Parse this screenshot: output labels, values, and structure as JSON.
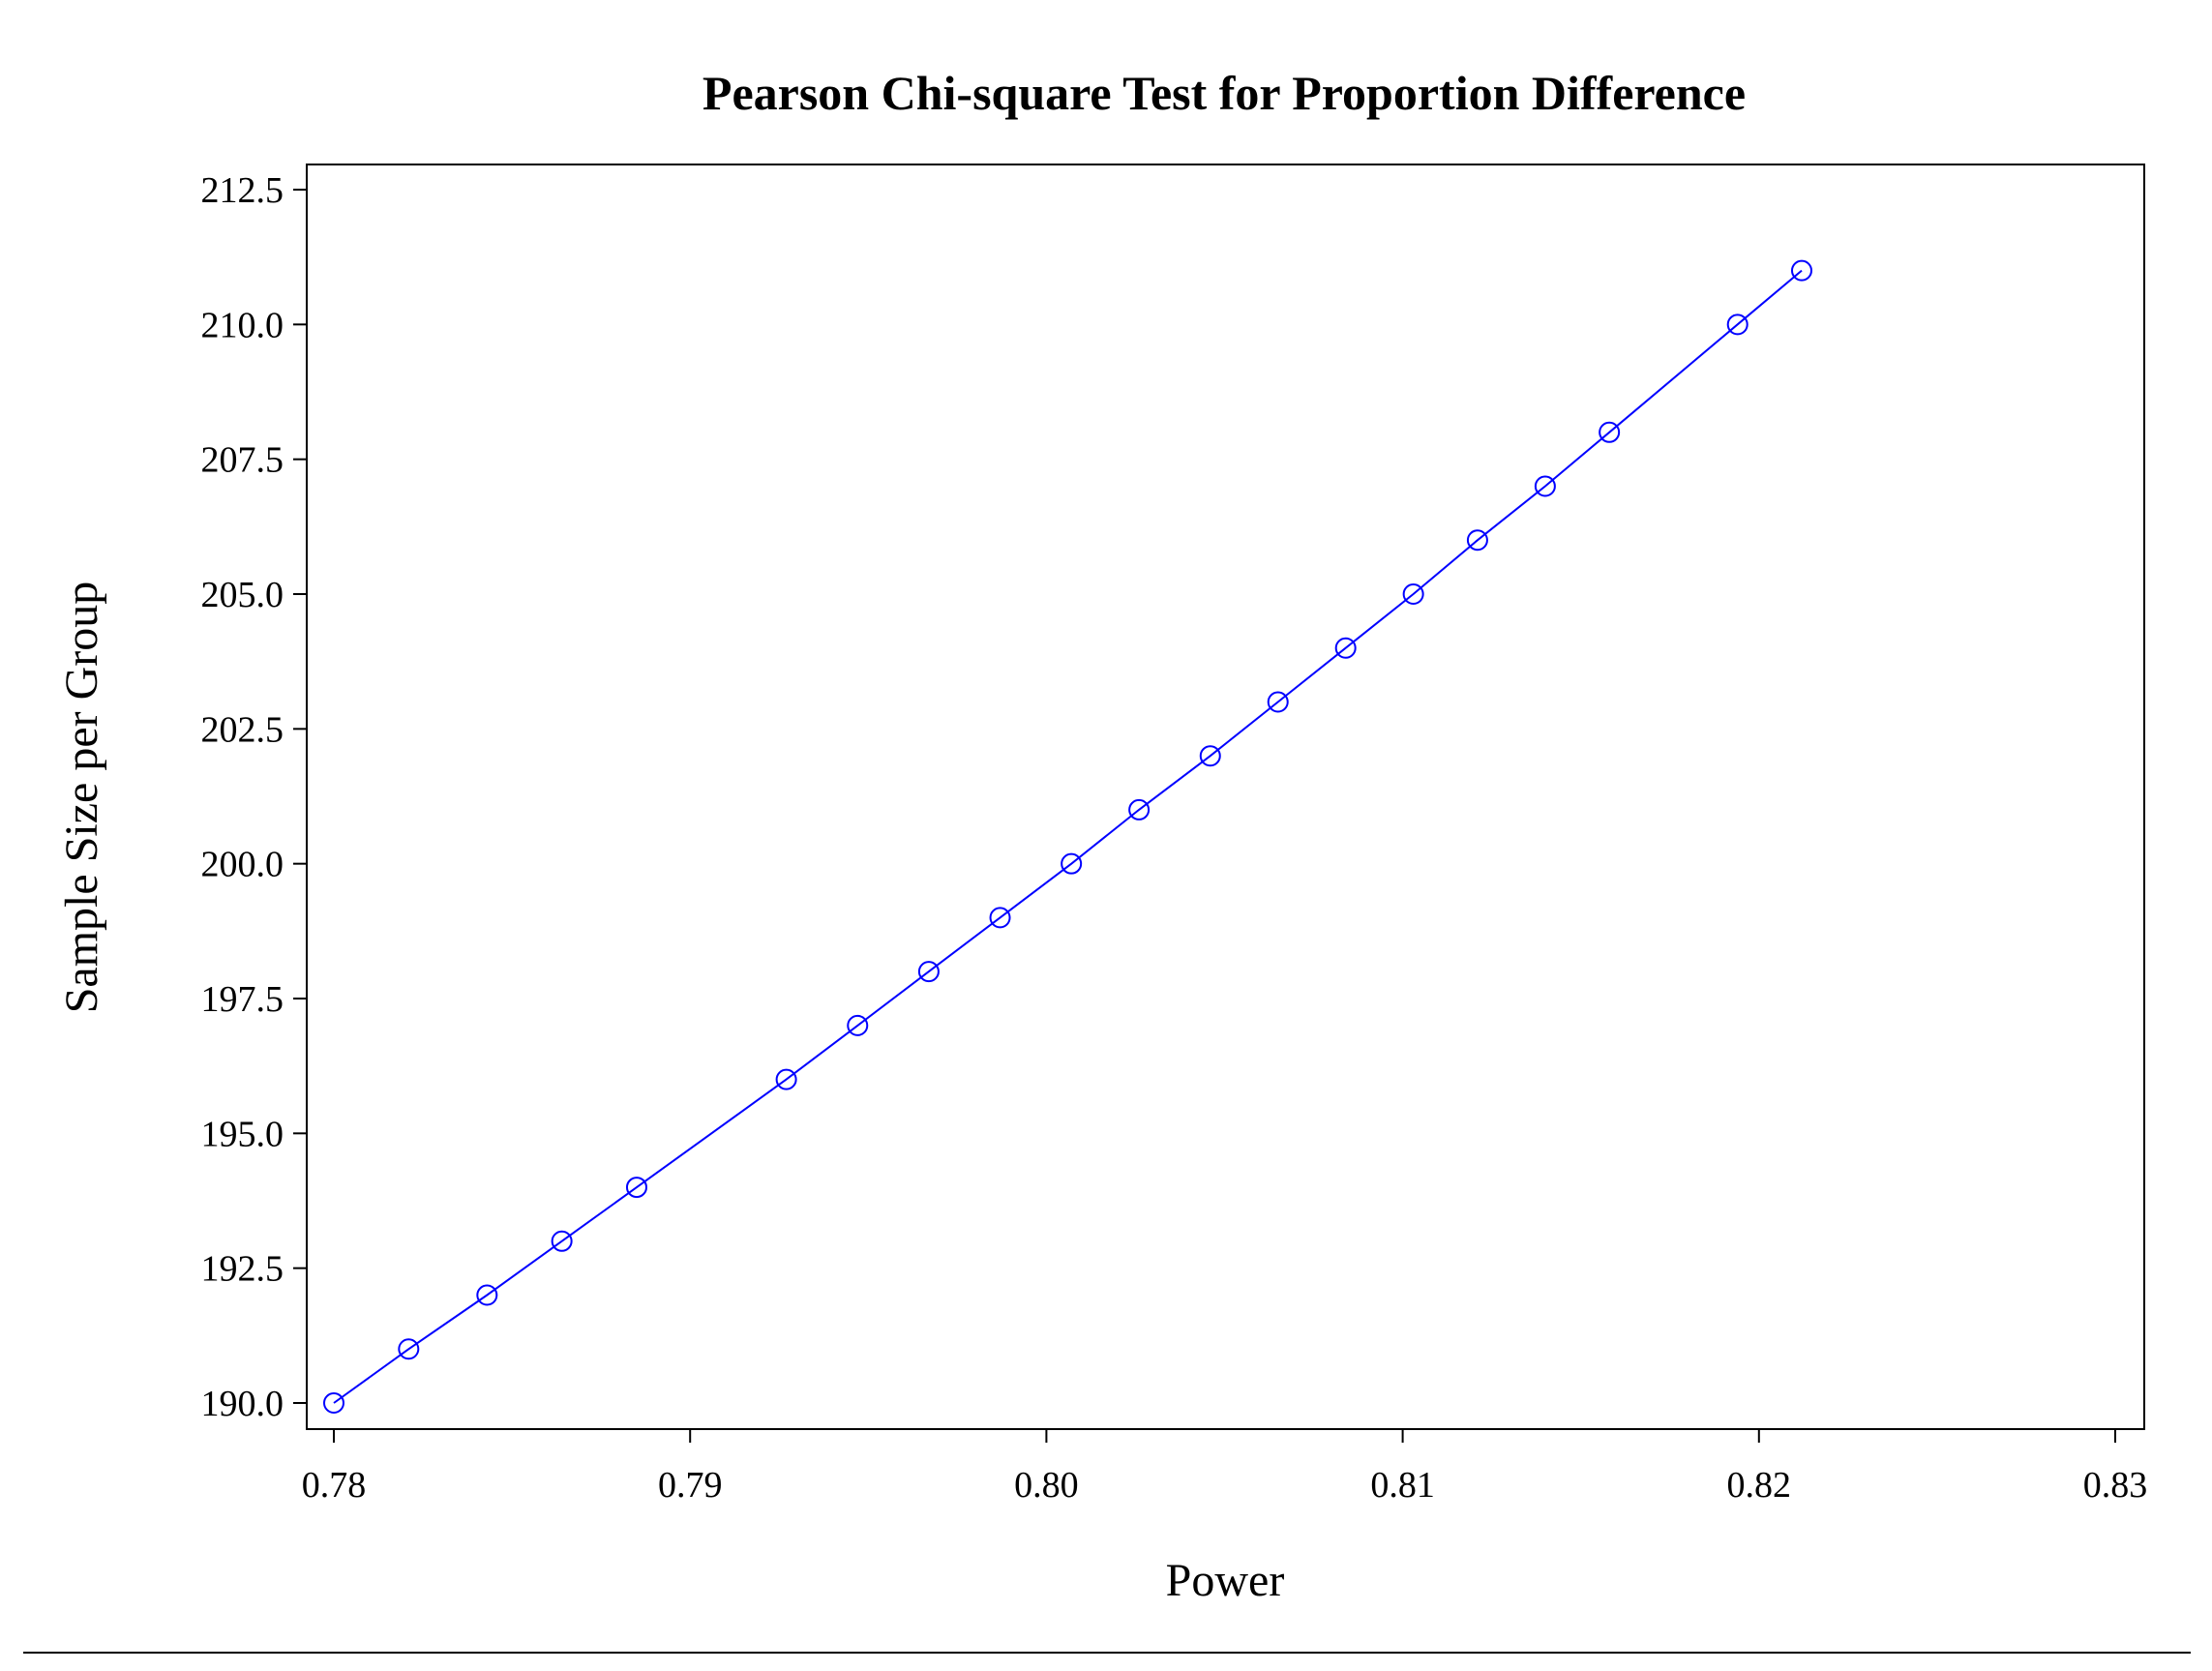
{
  "chart_data": {
    "type": "line",
    "title": "Pearson Chi-square Test for Proportion Difference",
    "xlabel": "Power",
    "ylabel": "Sample Size per Group",
    "xlim": [
      0.78,
      0.83
    ],
    "ylim": [
      190.0,
      212.5
    ],
    "xticks": [
      "0.78",
      "0.79",
      "0.80",
      "0.81",
      "0.82",
      "0.83"
    ],
    "yticks": [
      "190.0",
      "192.5",
      "195.0",
      "197.5",
      "200.0",
      "202.5",
      "205.0",
      "207.5",
      "210.0",
      "212.5"
    ],
    "grid": false,
    "legend": "none",
    "marker": "open-circle",
    "series_color": "#0000ff",
    "series": [
      {
        "x": [
          0.78,
          0.7821,
          0.7843,
          0.7864,
          0.7885,
          0.7927,
          0.7947,
          0.7967,
          0.7987,
          0.8007,
          0.8026,
          0.8046,
          0.8065,
          0.8084,
          0.8103,
          0.8121,
          0.814,
          0.8158,
          0.8194,
          0.8212
        ],
        "y": [
          190,
          191,
          192,
          193,
          194,
          196,
          197,
          198,
          199,
          200,
          201,
          202,
          203,
          204,
          205,
          206,
          207,
          208,
          210,
          211
        ]
      }
    ]
  }
}
